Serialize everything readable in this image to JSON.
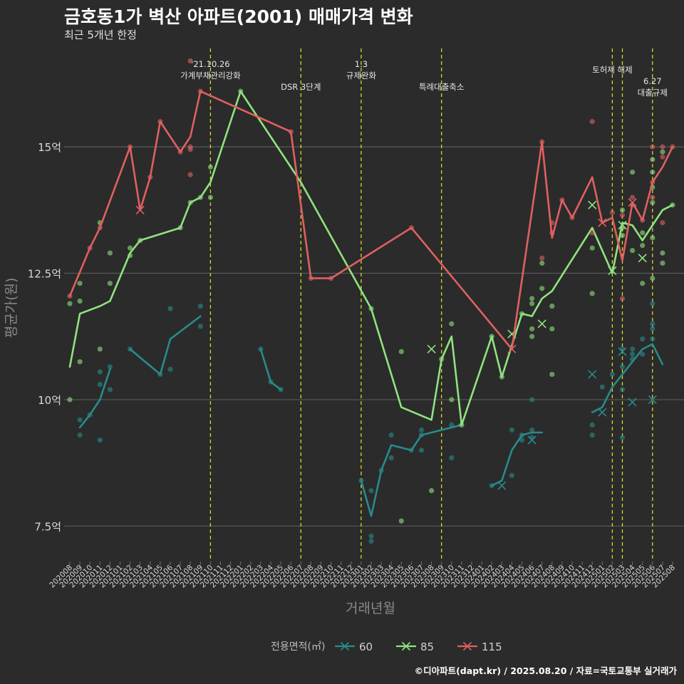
{
  "chart_data": {
    "type": "line",
    "title": "금호동1가 벽산 아파트(2001) 매매가격 변화",
    "subtitle": "최근 5개년 한정",
    "xlabel": "거래년월",
    "ylabel": "평균가(원)",
    "caption": "©디아파트(dapt.kr) / 2025.08.20 / 자료=국토교통부 실거래가",
    "legend_title": "전용면적(㎡)",
    "legend_position": "bottom",
    "ylim": [
      6.8,
      17.2
    ],
    "yticks": [
      {
        "v": 7.5,
        "label": "7.5억"
      },
      {
        "v": 10,
        "label": "10억"
      },
      {
        "v": 12.5,
        "label": "12.5억"
      },
      {
        "v": 15,
        "label": "15억"
      }
    ],
    "x_start": "202008",
    "x_end": "202508",
    "x_tick_step": 1,
    "grid": true,
    "events": [
      {
        "month": "202110",
        "lines": [
          "'21.10.26",
          "가계부채관리강화"
        ],
        "row": 0
      },
      {
        "month": "202207",
        "lines": [
          "DSR 3단계"
        ],
        "row": 1
      },
      {
        "month": "202301",
        "lines": [
          "1.3",
          "규제완화"
        ],
        "row": 0
      },
      {
        "month": "202309",
        "lines": [
          "특례대출축소"
        ],
        "row": 1
      },
      {
        "month": "202502",
        "lines": [
          "토허제 해제"
        ],
        "row": 0
      },
      {
        "month": "202503",
        "lines": [],
        "row": 0
      },
      {
        "month": "202506",
        "lines": [
          "6.27",
          "대출규제"
        ],
        "row": 1
      }
    ],
    "series": [
      {
        "name": "60",
        "color": "#2a8a8a",
        "segments": [
          [
            [
              "202009",
              9.45
            ],
            [
              "202010",
              9.7
            ],
            [
              "202011",
              10.0
            ],
            [
              "202012",
              10.6
            ]
          ],
          [
            [
              "202102",
              11.0
            ],
            [
              "202105",
              10.5
            ],
            [
              "202106",
              11.2
            ],
            [
              "202109",
              11.65
            ]
          ],
          [
            [
              "202203",
              11.0
            ],
            [
              "202204",
              10.35
            ],
            [
              "202205",
              10.2
            ]
          ],
          [
            [
              "202301",
              8.4
            ],
            [
              "202302",
              7.7
            ],
            [
              "202303",
              8.6
            ],
            [
              "202304",
              9.1
            ],
            [
              "202306",
              9.0
            ],
            [
              "202307",
              9.3
            ],
            [
              "202311",
              9.5
            ]
          ],
          [
            [
              "202402",
              8.3
            ],
            [
              "202403",
              8.4
            ],
            [
              "202404",
              9.0
            ],
            [
              "202405",
              9.3
            ],
            [
              "202406",
              9.35
            ],
            [
              "202407",
              9.35
            ]
          ],
          [
            [
              "202412",
              9.75
            ],
            [
              "202501",
              9.85
            ],
            [
              "202502",
              10.25
            ],
            [
              "202503",
              10.5
            ],
            [
              "202504",
              10.75
            ],
            [
              "202505",
              11.0
            ],
            [
              "202506",
              11.1
            ],
            [
              "202507",
              10.7
            ]
          ]
        ],
        "points": [
          [
            "202009",
            9.6
          ],
          [
            "202009",
            9.3
          ],
          [
            "202010",
            9.7
          ],
          [
            "202011",
            10.3
          ],
          [
            "202011",
            10.55
          ],
          [
            "202011",
            9.2
          ],
          [
            "202012",
            10.2
          ],
          [
            "202012",
            10.65
          ],
          [
            "202102",
            11.0
          ],
          [
            "202105",
            10.5
          ],
          [
            "202106",
            10.6
          ],
          [
            "202106",
            11.8
          ],
          [
            "202109",
            11.45
          ],
          [
            "202109",
            11.85
          ],
          [
            "202203",
            11.0
          ],
          [
            "202204",
            10.35
          ],
          [
            "202205",
            10.2
          ],
          [
            "202301",
            8.4
          ],
          [
            "202302",
            8.2
          ],
          [
            "202302",
            7.3
          ],
          [
            "202302",
            7.2
          ],
          [
            "202303",
            8.6
          ],
          [
            "202304",
            9.3
          ],
          [
            "202304",
            8.85
          ],
          [
            "202306",
            9.0
          ],
          [
            "202307",
            9.4
          ],
          [
            "202307",
            9.3
          ],
          [
            "202307",
            9.0
          ],
          [
            "202310",
            9.5
          ],
          [
            "202310",
            8.85
          ],
          [
            "202402",
            8.3
          ],
          [
            "202404",
            9.4
          ],
          [
            "202404",
            8.5
          ],
          [
            "202405",
            9.3
          ],
          [
            "202405",
            9.2
          ],
          [
            "202406",
            9.25
          ],
          [
            "202406",
            10.0
          ],
          [
            "202406",
            9.4
          ],
          [
            "202412",
            9.5
          ],
          [
            "202412",
            9.3
          ],
          [
            "202501",
            10.25
          ],
          [
            "202502",
            10.5
          ],
          [
            "202503",
            10.2
          ],
          [
            "202503",
            10.65
          ],
          [
            "202503",
            11.0
          ],
          [
            "202503",
            9.25
          ],
          [
            "202504",
            10.9
          ],
          [
            "202504",
            10.8
          ],
          [
            "202504",
            11.0
          ],
          [
            "202505",
            11.2
          ],
          [
            "202505",
            10.9
          ],
          [
            "202506",
            11.9
          ],
          [
            "202506",
            11.5
          ],
          [
            "202506",
            11.2
          ],
          [
            "202506",
            11.4
          ]
        ],
        "crosses": [
          [
            "202403",
            8.3
          ],
          [
            "202406",
            9.2
          ],
          [
            "202412",
            10.5
          ],
          [
            "202501",
            9.75
          ],
          [
            "202503",
            10.95
          ],
          [
            "202504",
            9.95
          ],
          [
            "202506",
            10.0
          ]
        ]
      },
      {
        "name": "85",
        "color": "#8fe37e",
        "segments": [
          [
            [
              "202008",
              10.65
            ],
            [
              "202009",
              11.7
            ],
            [
              "202011",
              11.85
            ],
            [
              "202012",
              11.95
            ],
            [
              "202102",
              12.9
            ],
            [
              "202103",
              13.15
            ],
            [
              "202107",
              13.4
            ],
            [
              "202108",
              13.9
            ],
            [
              "202109",
              14.0
            ],
            [
              "202110",
              14.3
            ],
            [
              "202112",
              15.5
            ],
            [
              "202201",
              16.1
            ],
            [
              "202207",
              14.3
            ],
            [
              "202302",
              11.8
            ],
            [
              "202305",
              9.85
            ],
            [
              "202308",
              9.6
            ],
            [
              "202309",
              10.8
            ],
            [
              "202310",
              11.25
            ],
            [
              "202311",
              9.5
            ],
            [
              "202402",
              11.25
            ],
            [
              "202403",
              10.45
            ],
            [
              "202405",
              11.7
            ],
            [
              "202406",
              11.65
            ],
            [
              "202407",
              12.0
            ],
            [
              "202408",
              12.15
            ],
            [
              "202412",
              13.4
            ],
            [
              "202502",
              12.5
            ],
            [
              "202503",
              13.5
            ],
            [
              "202504",
              13.45
            ],
            [
              "202505",
              13.15
            ],
            [
              "202506",
              13.45
            ],
            [
              "202507",
              13.75
            ],
            [
              "202508",
              13.85
            ]
          ]
        ],
        "points": [
          [
            "202008",
            10.0
          ],
          [
            "202008",
            11.9
          ],
          [
            "202009",
            12.3
          ],
          [
            "202009",
            11.95
          ],
          [
            "202009",
            10.75
          ],
          [
            "202011",
            13.5
          ],
          [
            "202011",
            11.0
          ],
          [
            "202012",
            12.3
          ],
          [
            "202012",
            12.9
          ],
          [
            "202102",
            13.0
          ],
          [
            "202102",
            12.85
          ],
          [
            "202103",
            13.15
          ],
          [
            "202107",
            13.4
          ],
          [
            "202108",
            13.9
          ],
          [
            "202109",
            14.0
          ],
          [
            "202110",
            14.6
          ],
          [
            "202110",
            14.0
          ],
          [
            "202201",
            16.1
          ],
          [
            "202302",
            11.8
          ],
          [
            "202305",
            10.95
          ],
          [
            "202305",
            7.6
          ],
          [
            "202308",
            8.2
          ],
          [
            "202309",
            10.8
          ],
          [
            "202310",
            11.5
          ],
          [
            "202310",
            10.0
          ],
          [
            "202311",
            9.5
          ],
          [
            "202402",
            11.25
          ],
          [
            "202403",
            10.45
          ],
          [
            "202405",
            11.7
          ],
          [
            "202406",
            11.9
          ],
          [
            "202406",
            11.4
          ],
          [
            "202406",
            12.0
          ],
          [
            "202406",
            11.25
          ],
          [
            "202407",
            12.2
          ],
          [
            "202407",
            12.7
          ],
          [
            "202408",
            11.85
          ],
          [
            "202408",
            11.4
          ],
          [
            "202408",
            10.5
          ],
          [
            "202412",
            12.1
          ],
          [
            "202412",
            13.0
          ],
          [
            "202503",
            13.4
          ],
          [
            "202503",
            13.25
          ],
          [
            "202503",
            13.75
          ],
          [
            "202504",
            12.95
          ],
          [
            "202504",
            14.5
          ],
          [
            "202505",
            12.3
          ],
          [
            "202505",
            13.05
          ],
          [
            "202505",
            13.3
          ],
          [
            "202506",
            14.75
          ],
          [
            "202506",
            14.5
          ],
          [
            "202506",
            14.2
          ],
          [
            "202506",
            13.9
          ],
          [
            "202506",
            13.2
          ],
          [
            "202506",
            12.4
          ],
          [
            "202507",
            14.9
          ],
          [
            "202507",
            12.9
          ],
          [
            "202507",
            12.7
          ],
          [
            "202508",
            13.85
          ]
        ],
        "crosses": [
          [
            "202308",
            11.0
          ],
          [
            "202404",
            11.3
          ],
          [
            "202407",
            11.5
          ],
          [
            "202412",
            13.85
          ],
          [
            "202502",
            12.55
          ],
          [
            "202503",
            13.45
          ],
          [
            "202505",
            12.8
          ]
        ]
      },
      {
        "name": "115",
        "color": "#e06060",
        "segments": [
          [
            [
              "202008",
              12.05
            ],
            [
              "202010",
              13.0
            ],
            [
              "202011",
              13.4
            ],
            [
              "202102",
              15.0
            ],
            [
              "202103",
              13.75
            ],
            [
              "202104",
              14.4
            ],
            [
              "202105",
              15.5
            ],
            [
              "202107",
              14.9
            ],
            [
              "202108",
              15.2
            ],
            [
              "202109",
              16.1
            ],
            [
              "202206",
              15.3
            ],
            [
              "202208",
              12.4
            ],
            [
              "202210",
              12.4
            ],
            [
              "202306",
              13.4
            ],
            [
              "202404",
              11.0
            ],
            [
              "202407",
              15.1
            ],
            [
              "202408",
              13.2
            ],
            [
              "202409",
              13.95
            ],
            [
              "202410",
              13.6
            ],
            [
              "202412",
              14.4
            ],
            [
              "202501",
              13.5
            ],
            [
              "202502",
              13.6
            ],
            [
              "202503",
              12.75
            ],
            [
              "202504",
              13.9
            ],
            [
              "202505",
              13.55
            ],
            [
              "202506",
              14.3
            ],
            [
              "202507",
              14.6
            ],
            [
              "202508",
              15.0
            ]
          ]
        ],
        "points": [
          [
            "202008",
            12.05
          ],
          [
            "202010",
            13.0
          ],
          [
            "202011",
            13.4
          ],
          [
            "202102",
            15.0
          ],
          [
            "202104",
            14.4
          ],
          [
            "202105",
            15.5
          ],
          [
            "202107",
            14.9
          ],
          [
            "202108",
            16.7
          ],
          [
            "202108",
            15.0
          ],
          [
            "202108",
            14.45
          ],
          [
            "202108",
            14.95
          ],
          [
            "202109",
            16.1
          ],
          [
            "202206",
            15.3
          ],
          [
            "202208",
            12.4
          ],
          [
            "202210",
            12.4
          ],
          [
            "202306",
            13.4
          ],
          [
            "202407",
            15.1
          ],
          [
            "202407",
            12.8
          ],
          [
            "202408",
            13.5
          ],
          [
            "202408",
            13.3
          ],
          [
            "202409",
            13.95
          ],
          [
            "202410",
            13.6
          ],
          [
            "202412",
            15.5
          ],
          [
            "202412",
            13.3
          ],
          [
            "202502",
            13.7
          ],
          [
            "202503",
            12.0
          ],
          [
            "202503",
            13.65
          ],
          [
            "202504",
            14.0
          ],
          [
            "202504",
            13.85
          ],
          [
            "202505",
            13.55
          ],
          [
            "202506",
            15.0
          ],
          [
            "202506",
            14.3
          ],
          [
            "202506",
            14.0
          ],
          [
            "202507",
            15.0
          ],
          [
            "202507",
            14.8
          ],
          [
            "202507",
            13.5
          ],
          [
            "202508",
            15.0
          ]
        ],
        "crosses": [
          [
            "202103",
            13.75
          ],
          [
            "202404",
            11.0
          ],
          [
            "202501",
            13.5
          ],
          [
            "202504",
            13.9
          ]
        ]
      }
    ]
  }
}
